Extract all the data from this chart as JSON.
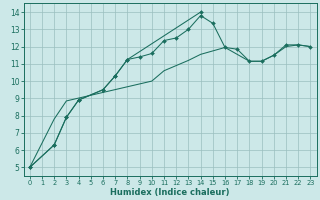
{
  "bg_color": "#cce8e8",
  "grid_color": "#9bbfbf",
  "line_color": "#1a6e5e",
  "xlabel": "Humidex (Indice chaleur)",
  "xlim": [
    -0.5,
    23.5
  ],
  "ylim": [
    4.5,
    14.5
  ],
  "yticks": [
    5,
    6,
    7,
    8,
    9,
    10,
    11,
    12,
    13,
    14
  ],
  "xticks": [
    0,
    1,
    2,
    3,
    4,
    5,
    6,
    7,
    8,
    9,
    10,
    11,
    12,
    13,
    14,
    15,
    16,
    17,
    18,
    19,
    20,
    21,
    22,
    23
  ],
  "line1_x": [
    0,
    2,
    3,
    4,
    6,
    7,
    8,
    9,
    10,
    11,
    12,
    13,
    14,
    15,
    16,
    17,
    18,
    19,
    20,
    21,
    22,
    23
  ],
  "line1_y": [
    5.0,
    6.3,
    7.9,
    8.9,
    9.5,
    10.3,
    11.25,
    11.4,
    11.6,
    12.35,
    12.5,
    13.0,
    13.8,
    13.35,
    11.95,
    11.85,
    11.15,
    11.15,
    11.5,
    12.1,
    12.1,
    12.0
  ],
  "line2_x": [
    0,
    2,
    3,
    4,
    6,
    7,
    8,
    14
  ],
  "line2_y": [
    5.0,
    6.3,
    7.9,
    8.9,
    9.5,
    10.3,
    11.25,
    14.0
  ],
  "line3_x": [
    0,
    2,
    3,
    10,
    11,
    12,
    13,
    14,
    15,
    16,
    18,
    19,
    20,
    21,
    22,
    23
  ],
  "line3_y": [
    5.0,
    7.8,
    8.85,
    10.0,
    10.6,
    10.9,
    11.2,
    11.55,
    11.75,
    11.95,
    11.15,
    11.15,
    11.5,
    12.0,
    12.1,
    12.0
  ]
}
